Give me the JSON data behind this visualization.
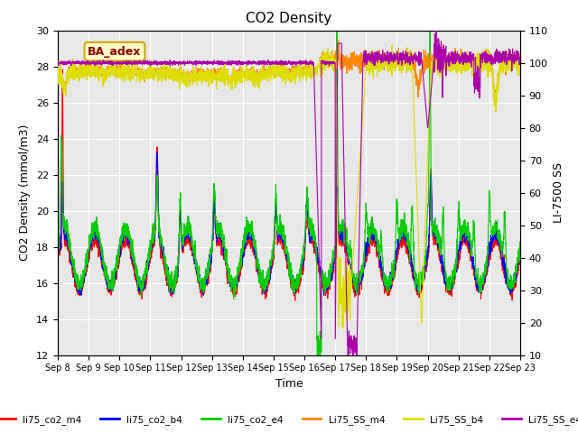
{
  "title": "CO2 Density",
  "xlabel": "Time",
  "ylabel_left": "CO2 Density (mmol/m3)",
  "ylabel_right": "LI-7500 SS",
  "ylim_left": [
    12,
    30
  ],
  "ylim_right": [
    10,
    110
  ],
  "xlim": [
    0,
    15
  ],
  "x_ticks": [
    0,
    1,
    2,
    3,
    4,
    5,
    6,
    7,
    8,
    9,
    10,
    11,
    12,
    13,
    14,
    15
  ],
  "x_tick_labels": [
    "Sep 8",
    "Sep 9",
    "Sep 10",
    "Sep 11",
    "Sep 12",
    "Sep 13",
    "Sep 14",
    "Sep 15",
    "Sep 16",
    "Sep 17",
    "Sep 18",
    "Sep 19",
    "Sep 20",
    "Sep 21",
    "Sep 22",
    "Sep 23"
  ],
  "yticks_left": [
    12,
    14,
    16,
    18,
    20,
    22,
    24,
    26,
    28,
    30
  ],
  "yticks_right": [
    10,
    20,
    30,
    40,
    50,
    60,
    70,
    80,
    90,
    100,
    110
  ],
  "annotation_text": "BA_adex",
  "annotation_color": "#8B0000",
  "annotation_bg": "#FFFFCC",
  "annotation_border": "#CCAA00",
  "plot_bg": "#E8E8E8",
  "legend_entries": [
    "li75_co2_m4",
    "li75_co2_b4",
    "li75_co2_e4",
    "Li75_SS_m4",
    "Li75_SS_b4",
    "Li75_SS_e4"
  ],
  "legend_colors": [
    "#FF0000",
    "#0000FF",
    "#00CC00",
    "#FF8800",
    "#DDDD00",
    "#AA00AA"
  ],
  "line_width": 0.8,
  "grid_color": "#FFFFFF",
  "seed": 42
}
